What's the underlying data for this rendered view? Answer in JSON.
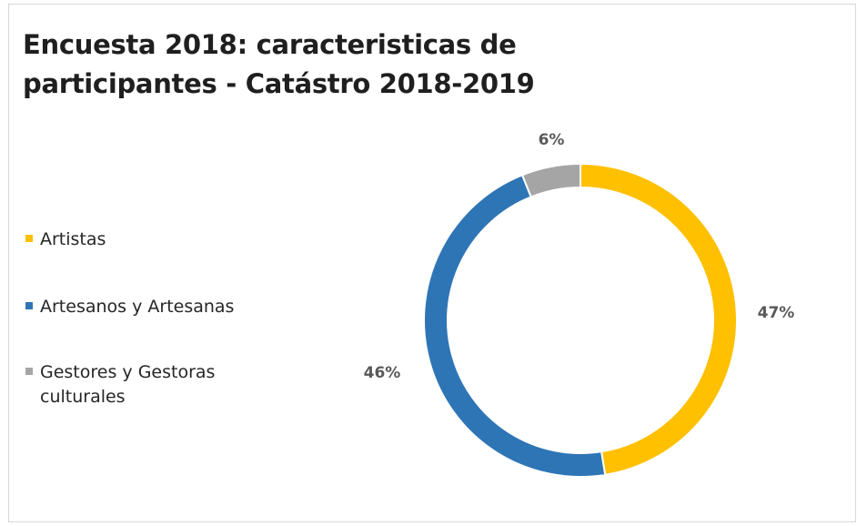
{
  "chart_data": {
    "type": "pie",
    "donut": true,
    "title": "Encuesta 2018: caracteristicas de participantes - Catástro 2018-2019",
    "categories": [
      "Artistas",
      "Artesanos y Artesanas",
      "Gestores y Gestoras culturales"
    ],
    "values": [
      47,
      46,
      6
    ],
    "data_labels": [
      "47%",
      "46%",
      "6%"
    ],
    "colors": [
      "#FFC000",
      "#2E75B6",
      "#A5A5A5"
    ],
    "legend_position": "left",
    "start_angle": "top",
    "direction": "clockwise"
  }
}
